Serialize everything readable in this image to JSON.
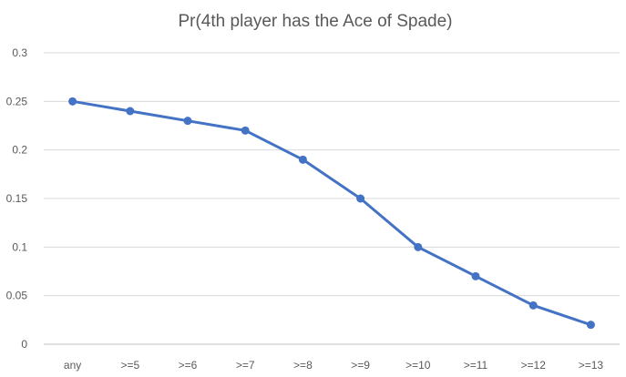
{
  "chart_data": {
    "type": "line",
    "title": "Pr(4th player has the Ace of Spade)",
    "xlabel": "",
    "ylabel": "",
    "categories": [
      "any",
      ">=5",
      ">=6",
      ">=7",
      ">=8",
      ">=9",
      ">=10",
      ">=11",
      ">=12",
      ">=13"
    ],
    "series": [
      {
        "values": [
          0.25,
          0.24,
          0.23,
          0.22,
          0.19,
          0.15,
          0.1,
          0.07,
          0.04,
          0.02
        ],
        "color": "#4472c4"
      }
    ],
    "ylim": [
      0,
      0.3
    ],
    "yticks": [
      "0",
      "0.05",
      "0.1",
      "0.15",
      "0.2",
      "0.25",
      "0.3"
    ],
    "grid": "horizontal",
    "markers": true
  }
}
